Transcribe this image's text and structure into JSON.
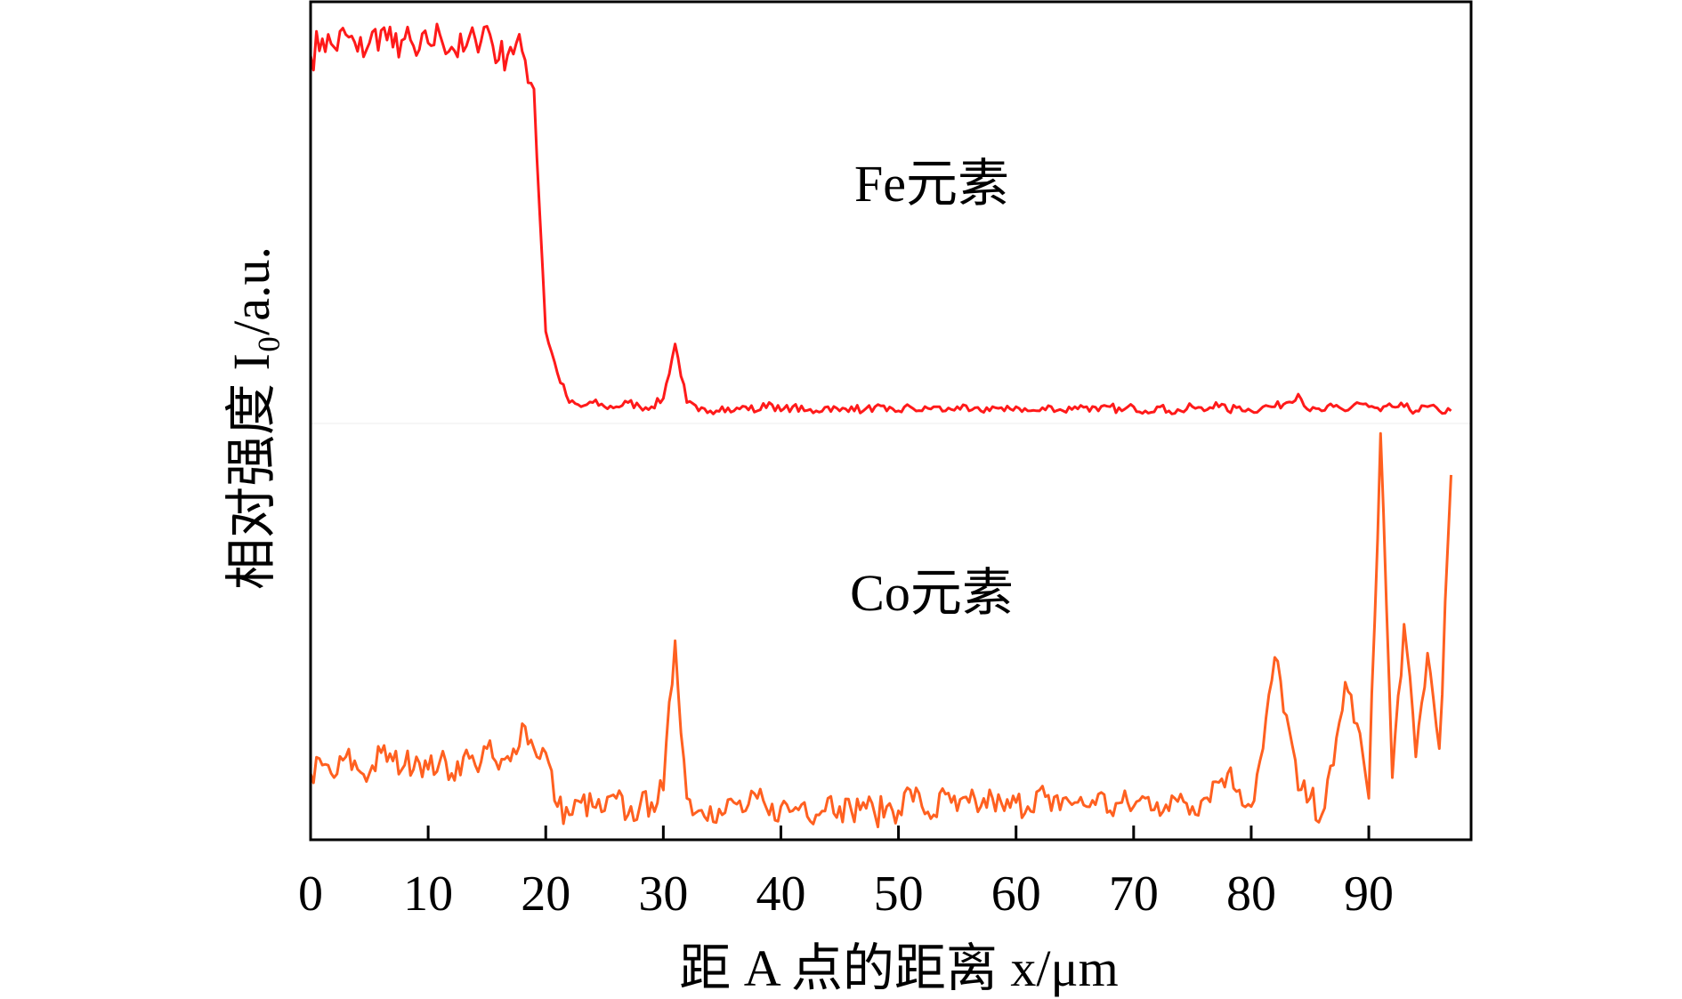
{
  "chart_data": {
    "type": "line",
    "title": "",
    "xlabel": "距 A 点的距离 x/μm",
    "ylabel": "相对强度 I₀/a.u.",
    "xlim": [
      0,
      98.7
    ],
    "ylim": [
      0,
      100
    ],
    "x_ticks": [
      0,
      10,
      20,
      30,
      40,
      50,
      60,
      70,
      80,
      90
    ],
    "grid": false,
    "legend": "none",
    "colors": {
      "Fe": "#ff1a1a",
      "Co": "#ff6020",
      "axis": "#000000"
    },
    "x": [
      0,
      1,
      2,
      3,
      4,
      5,
      6,
      7,
      8,
      9,
      10,
      11,
      12,
      13,
      14,
      15,
      16,
      17,
      18,
      19,
      20,
      21,
      22,
      23,
      24,
      25,
      26,
      27,
      28,
      29,
      30,
      31,
      32,
      33,
      34,
      35,
      36,
      37,
      38,
      39,
      40,
      41,
      42,
      43,
      44,
      45,
      46,
      47,
      48,
      49,
      50,
      51,
      52,
      53,
      54,
      55,
      56,
      57,
      58,
      59,
      60,
      61,
      62,
      63,
      64,
      65,
      66,
      67,
      68,
      69,
      70,
      71,
      72,
      73,
      74,
      75,
      76,
      77,
      78,
      79,
      80,
      81,
      82,
      83,
      84,
      85,
      86,
      87,
      88,
      89,
      90,
      91,
      92,
      93,
      94,
      95,
      96,
      97
    ],
    "series": [
      {
        "name": "Fe元素",
        "panel": "upper",
        "values": [
          88,
          92,
          90,
          93,
          89,
          91,
          94,
          90,
          92,
          88,
          91,
          93,
          90,
          89,
          92,
          95,
          87,
          90,
          89,
          80,
          22,
          12,
          5,
          4,
          5,
          4,
          4,
          5,
          4,
          4,
          6,
          19,
          5,
          3,
          3,
          4,
          3,
          4,
          3,
          5,
          3,
          4,
          3,
          3,
          4,
          3,
          4,
          3,
          4,
          3,
          3,
          4,
          3,
          4,
          3,
          4,
          3,
          3,
          4,
          3,
          4,
          3,
          3,
          4,
          3,
          4,
          4,
          3,
          4,
          3,
          4,
          3,
          4,
          3,
          3,
          4,
          3,
          5,
          3,
          4,
          3,
          4,
          4,
          5,
          7,
          3,
          3,
          4,
          3,
          5,
          4,
          3,
          4,
          4,
          3,
          4,
          3,
          3
        ]
      },
      {
        "name": "Co元素",
        "panel": "lower",
        "values": [
          16,
          18,
          15,
          20,
          17,
          16,
          21,
          19,
          18,
          20,
          17,
          19,
          16,
          20,
          18,
          22,
          17,
          19,
          28,
          22,
          21,
          8,
          6,
          9,
          8,
          7,
          10,
          6,
          8,
          9,
          12,
          48,
          10,
          7,
          8,
          6,
          9,
          7,
          10,
          6,
          8,
          7,
          9,
          6,
          10,
          8,
          7,
          9,
          6,
          8,
          7,
          12,
          8,
          6,
          11,
          7,
          9,
          8,
          10,
          7,
          9,
          8,
          12,
          7,
          10,
          9,
          8,
          11,
          7,
          9,
          8,
          10,
          9,
          7,
          11,
          8,
          10,
          14,
          16,
          12,
          8,
          22,
          44,
          30,
          12,
          10,
          6,
          18,
          38,
          28,
          10,
          98,
          15,
          52,
          20,
          45,
          22,
          88
        ]
      }
    ],
    "annotations": [
      "Fe元素",
      "Co元素"
    ]
  }
}
